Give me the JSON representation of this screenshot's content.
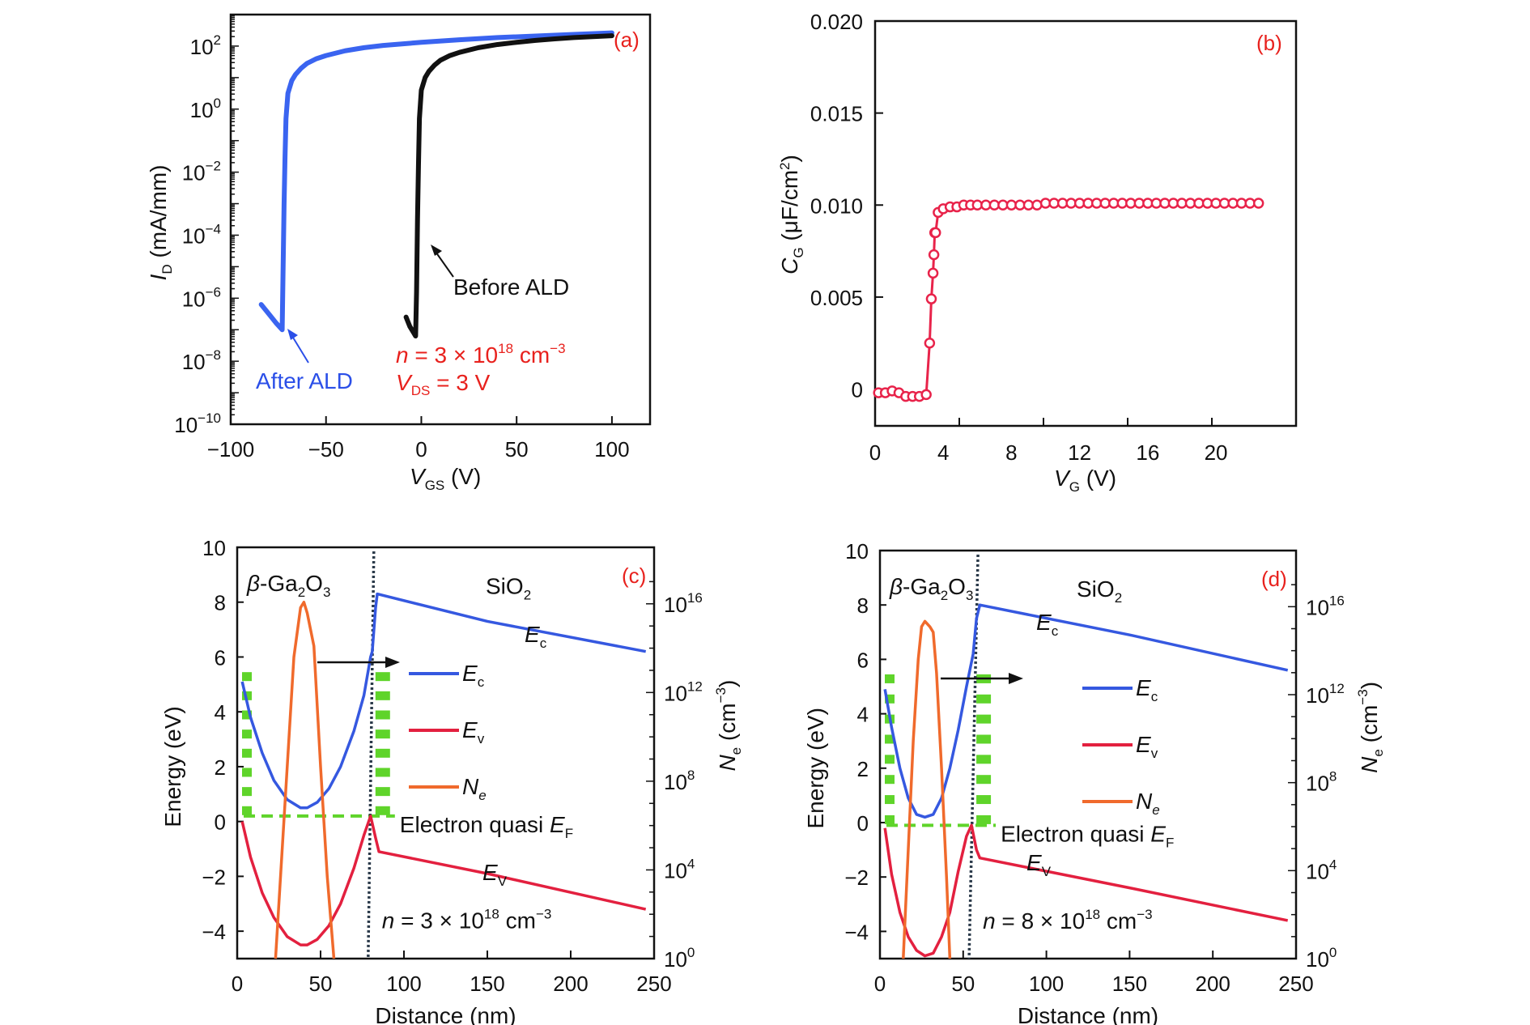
{
  "colors": {
    "before_ald": "#111111",
    "after_ald": "#3a64f0",
    "cg": "#e8234a",
    "ec": "#3558e0",
    "ev": "#e3203f",
    "ne": "#f06a2c",
    "quasi_ef": "#5fd42a",
    "label_red": "#e8211d"
  },
  "chart_data": [
    {
      "id": "a",
      "type": "line",
      "panel_label": "(a)",
      "xlabel": "V_GS (V)",
      "xlabel_main": "V",
      "xlabel_sub": "GS",
      "xlabel_unit": " (V)",
      "ylabel": "I_D (mA/mm)",
      "ylabel_main": "I",
      "ylabel_sub": "D",
      "ylabel_unit": " (mA/mm)",
      "xlim": [
        -100,
        120
      ],
      "ylim_log10": [
        -10,
        3
      ],
      "yscale": "log",
      "xticks": [
        -100,
        -50,
        0,
        50,
        100
      ],
      "xtick_labels": [
        "−100",
        "−50",
        "0",
        "50",
        "100"
      ],
      "yticks_exp": [
        -10,
        -8,
        -6,
        -4,
        -2,
        0,
        2
      ],
      "ytick_labels": [
        "−10",
        "−8",
        "−6",
        "−4",
        "−2",
        "0",
        "2"
      ],
      "series": [
        {
          "name": "After ALD",
          "color_key": "after_ald",
          "x": [
            -84,
            -80,
            -76,
            -73,
            -72.5,
            -72,
            -71.5,
            -71,
            -70,
            -68,
            -66,
            -63,
            -60,
            -55,
            -50,
            -40,
            -30,
            -20,
            0,
            20,
            40,
            60,
            80,
            100
          ],
          "log_y": [
            -6.2,
            -6.5,
            -6.8,
            -7.0,
            -5.0,
            -3.0,
            -1.5,
            -0.3,
            0.5,
            0.9,
            1.1,
            1.3,
            1.45,
            1.6,
            1.7,
            1.85,
            1.95,
            2.02,
            2.12,
            2.2,
            2.27,
            2.32,
            2.37,
            2.42
          ]
        },
        {
          "name": "Before ALD",
          "color_key": "before_ald",
          "x": [
            -8,
            -6,
            -4,
            -3,
            -2.5,
            -2,
            -1.5,
            -1,
            0,
            2,
            4,
            7,
            10,
            15,
            20,
            30,
            40,
            50,
            60,
            70,
            80,
            90,
            100
          ],
          "log_y": [
            -6.6,
            -6.9,
            -7.1,
            -7.2,
            -5.8,
            -3.5,
            -1.8,
            -0.3,
            0.6,
            1.0,
            1.2,
            1.4,
            1.55,
            1.7,
            1.8,
            1.95,
            2.05,
            2.12,
            2.18,
            2.23,
            2.27,
            2.3,
            2.33
          ]
        }
      ],
      "annotations": {
        "before_ald": "Before ALD",
        "after_ald": "After ALD",
        "n_prefix": "n",
        "n_eq": " = 3 × 10",
        "n_exp": "18",
        "n_unit": " cm",
        "n_unit_exp": "−3",
        "vds_main": "V",
        "vds_sub": "DS",
        "vds_eq": " = 3 V"
      }
    },
    {
      "id": "b",
      "type": "line",
      "marker": "open-circle",
      "panel_label": "(b)",
      "xlabel": "V_G (V)",
      "xlabel_main": "V",
      "xlabel_sub": "G",
      "xlabel_unit": " (V)",
      "ylabel": "C_G (μF/cm²)",
      "ylabel_main": "C",
      "ylabel_sub": "G",
      "ylabel_unit": " (μF/cm",
      "ylabel_sup": "2",
      "ylabel_close": ")",
      "xlim": [
        0,
        25
      ],
      "ylim": [
        -0.002,
        0.02
      ],
      "xticks": [
        0,
        4,
        8,
        12,
        16,
        20
      ],
      "xtick_labels": [
        "0",
        "4",
        "8",
        "12",
        "16",
        "20"
      ],
      "yticks": [
        0,
        0.005,
        0.01,
        0.015,
        0.02
      ],
      "ytick_labels": [
        "0",
        "0.005",
        "0.010",
        "0.015",
        "0.020"
      ],
      "series": [
        {
          "name": "C_G",
          "color_key": "cg",
          "x": [
            0.2,
            0.6,
            1.0,
            1.4,
            1.8,
            2.2,
            2.6,
            3.0,
            3.2,
            3.3,
            3.4,
            3.45,
            3.5,
            3.55,
            3.7,
            4.0,
            4.4,
            4.8,
            5.2,
            5.6,
            6.0,
            6.5,
            7.0,
            7.5,
            8.0,
            8.5,
            9.0,
            9.5,
            10.0,
            10.5,
            11.0,
            11.5,
            12.0,
            12.5,
            13.0,
            13.5,
            14.0,
            14.5,
            15.0,
            15.5,
            16.0,
            16.5,
            17.0,
            17.5,
            18.0,
            18.5,
            19.0,
            19.5,
            20.0,
            20.5,
            21.0,
            21.5,
            22.0,
            22.5
          ],
          "y": [
            -0.0002,
            -0.0002,
            -0.0001,
            -0.0002,
            -0.0004,
            -0.0004,
            -0.0004,
            -0.0003,
            0.0025,
            0.0049,
            0.0063,
            0.0073,
            0.0085,
            0.0085,
            0.0096,
            0.0098,
            0.0099,
            0.0099,
            0.01,
            0.01,
            0.01,
            0.01,
            0.01,
            0.01,
            0.01,
            0.01,
            0.01,
            0.01,
            0.0101,
            0.0101,
            0.0101,
            0.0101,
            0.0101,
            0.0101,
            0.0101,
            0.0101,
            0.0101,
            0.0101,
            0.0101,
            0.0101,
            0.0101,
            0.0101,
            0.0101,
            0.0101,
            0.0101,
            0.0101,
            0.0101,
            0.0101,
            0.0101,
            0.0101,
            0.0101,
            0.0101,
            0.0101,
            0.0101
          ]
        }
      ]
    },
    {
      "id": "c",
      "type": "line",
      "panel_label": "(c)",
      "xlabel": "Distance (nm)",
      "ylabel": "Energy (eV)",
      "y2label": "N_e (cm⁻³)",
      "y2label_main": "N",
      "y2label_sub": "e",
      "y2label_unit": " (cm",
      "y2label_sup": "−3",
      "y2label_close": ")",
      "xlim": [
        0,
        250
      ],
      "ylim": [
        -5,
        10
      ],
      "y2lim_log10": [
        0,
        18
      ],
      "xticks": [
        0,
        50,
        100,
        150,
        200,
        250
      ],
      "xtick_labels": [
        "0",
        "50",
        "100",
        "150",
        "200",
        "250"
      ],
      "yticks": [
        -4,
        -2,
        0,
        2,
        4,
        6,
        8,
        10
      ],
      "ytick_labels": [
        "−4",
        "−2",
        "0",
        "2",
        "4",
        "6",
        "8",
        "10"
      ],
      "y2ticks_exp": [
        0,
        4,
        8,
        12,
        16
      ],
      "y2tick_labels": [
        "0",
        "4",
        "8",
        "12",
        "16"
      ],
      "interface_x": 80,
      "material_left": "β-Ga",
      "material_right": "SiO",
      "legend": [
        {
          "label_main": "E",
          "label_sub": "c",
          "color_key": "ec"
        },
        {
          "label_main": "E",
          "label_sub": "v",
          "color_key": "ev"
        },
        {
          "label_main": "N",
          "label_sub": "e",
          "color_key": "ne"
        }
      ],
      "quasi_ef_label": "Electron quasi ",
      "quasi_ef_main": "E",
      "quasi_ef_sub": "F",
      "n_eq": " = 3 × 10",
      "n_exp": "18",
      "quasi_ef_level": 0.2,
      "series": [
        {
          "name": "Ec",
          "color_key": "ec",
          "x": [
            3,
            8,
            15,
            22,
            30,
            38,
            42,
            48,
            55,
            62,
            70,
            76,
            80,
            81,
            83,
            84,
            150,
            245
          ],
          "y": [
            5.1,
            3.8,
            2.5,
            1.5,
            0.8,
            0.5,
            0.5,
            0.7,
            1.2,
            2.0,
            3.3,
            4.6,
            6.0,
            6.2,
            7.8,
            8.3,
            7.3,
            6.2
          ]
        },
        {
          "name": "Ev",
          "color_key": "ev",
          "x": [
            3,
            8,
            15,
            22,
            30,
            38,
            42,
            48,
            55,
            62,
            70,
            76,
            80,
            83,
            85,
            150,
            245
          ],
          "y": [
            0.0,
            -1.3,
            -2.6,
            -3.5,
            -4.2,
            -4.5,
            -4.5,
            -4.3,
            -3.8,
            -3.0,
            -1.7,
            -0.5,
            0.2,
            -0.6,
            -1.1,
            -1.9,
            -3.2
          ]
        },
        {
          "name": "Ne",
          "color_key": "ne",
          "x": [
            23,
            26,
            30,
            34,
            38,
            40,
            42,
            46,
            50,
            54,
            58
          ],
          "y": [
            -5,
            -2,
            2,
            6,
            7.8,
            8.0,
            7.6,
            6.4,
            2.0,
            -2.0,
            -5
          ]
        }
      ]
    },
    {
      "id": "d",
      "type": "line",
      "panel_label": "(d)",
      "xlabel": "Distance (nm)",
      "ylabel": "Energy (eV)",
      "y2label": "N_e (cm⁻³)",
      "y2label_main": "N",
      "y2label_sub": "e",
      "y2label_unit": " (cm",
      "y2label_sup": "−3",
      "y2label_close": ")",
      "xlim": [
        0,
        250
      ],
      "ylim": [
        -5,
        10
      ],
      "y2lim_log10": [
        0,
        18
      ],
      "xticks": [
        0,
        50,
        100,
        150,
        200,
        250
      ],
      "xtick_labels": [
        "0",
        "50",
        "100",
        "150",
        "200",
        "250"
      ],
      "yticks": [
        -4,
        -2,
        0,
        2,
        4,
        6,
        8,
        10
      ],
      "ytick_labels": [
        "−4",
        "−2",
        "0",
        "2",
        "4",
        "6",
        "8",
        "10"
      ],
      "y2ticks_exp": [
        0,
        4,
        8,
        12,
        16
      ],
      "y2tick_labels": [
        "0",
        "4",
        "8",
        "12",
        "16"
      ],
      "interface_x": 55,
      "material_left": "β-Ga",
      "material_right": "SiO",
      "legend": [
        {
          "label_main": "E",
          "label_sub": "c",
          "color_key": "ec"
        },
        {
          "label_main": "E",
          "label_sub": "v",
          "color_key": "ev"
        },
        {
          "label_main": "N",
          "label_sub": "e",
          "color_key": "ne"
        }
      ],
      "quasi_ef_label": "Electron quasi ",
      "quasi_ef_main": "E",
      "quasi_ef_sub": "F",
      "n_eq": " = 8 × 10",
      "n_exp": "18",
      "quasi_ef_level": -0.1,
      "series": [
        {
          "name": "Ec",
          "color_key": "ec",
          "x": [
            3,
            7,
            12,
            17,
            22,
            27,
            32,
            37,
            42,
            47,
            52,
            56,
            58,
            60,
            150,
            245
          ],
          "y": [
            4.9,
            3.5,
            2.0,
            0.9,
            0.3,
            0.2,
            0.3,
            0.9,
            2.0,
            3.4,
            5.0,
            6.2,
            7.5,
            8.0,
            6.9,
            5.6
          ]
        },
        {
          "name": "Ev",
          "color_key": "ev",
          "x": [
            3,
            7,
            12,
            17,
            22,
            27,
            32,
            37,
            42,
            47,
            52,
            55,
            58,
            60,
            150,
            245
          ],
          "y": [
            -0.2,
            -1.9,
            -3.3,
            -4.2,
            -4.7,
            -4.9,
            -4.8,
            -4.2,
            -3.3,
            -1.8,
            -0.5,
            -0.1,
            -1.0,
            -1.3,
            -2.4,
            -3.6
          ]
        },
        {
          "name": "Ne",
          "color_key": "ne",
          "x": [
            14,
            17,
            20,
            23,
            25,
            27,
            30,
            32,
            34,
            37,
            40,
            42
          ],
          "y": [
            -5,
            -1,
            3,
            6,
            7.2,
            7.4,
            7.2,
            7.0,
            5.5,
            2.0,
            -2.0,
            -5
          ]
        }
      ]
    }
  ]
}
